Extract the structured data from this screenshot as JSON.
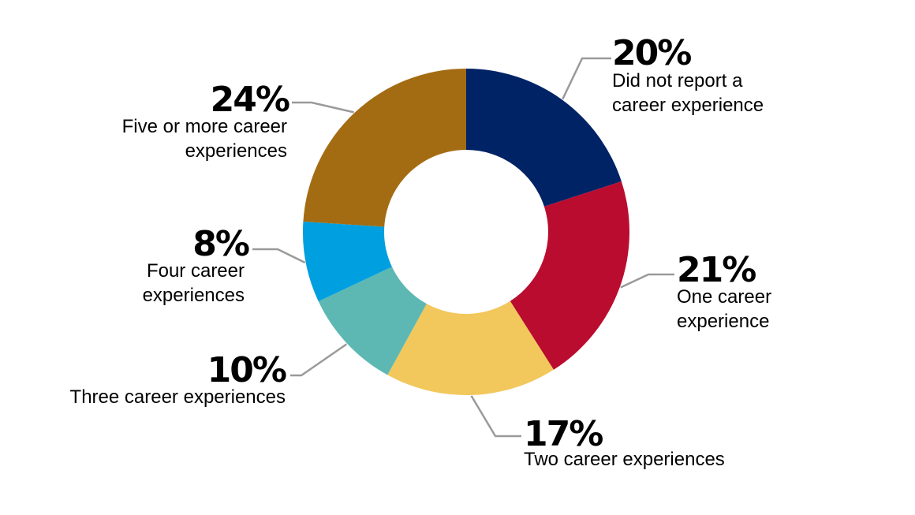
{
  "chart_data": {
    "type": "pie",
    "donut": true,
    "title": "",
    "slices": [
      {
        "label": "Did not report a career experience",
        "value": 20,
        "display": "20%",
        "color": "#002366"
      },
      {
        "label": "One career experience",
        "value": 21,
        "display": "21%",
        "color": "#BA0C2F"
      },
      {
        "label": "Two career experiences",
        "value": 17,
        "display": "17%",
        "color": "#F2C75C"
      },
      {
        "label": "Three career experiences",
        "value": 10,
        "display": "10%",
        "color": "#5DB8B3"
      },
      {
        "label": "Four career experiences",
        "value": 8,
        "display": "8%",
        "color": "#009FDF"
      },
      {
        "label": "Five or more career experiences",
        "value": 24,
        "display": "24%",
        "color": "#A46C12"
      }
    ],
    "legend": "none"
  }
}
